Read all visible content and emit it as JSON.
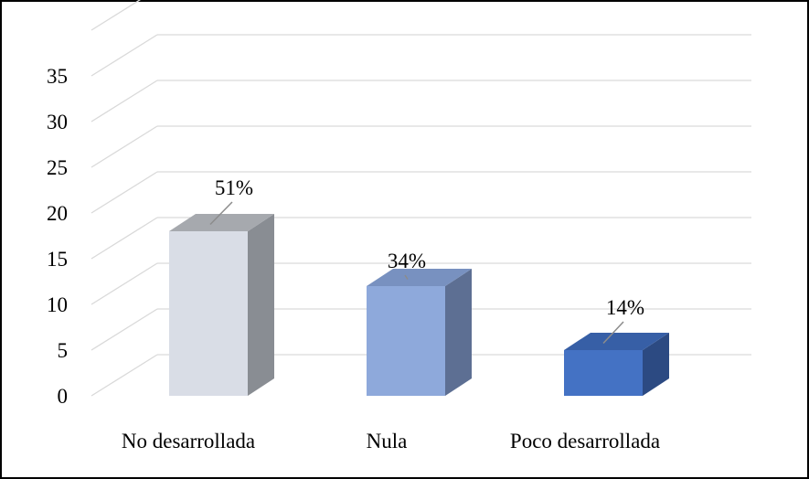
{
  "chart_data": {
    "type": "bar",
    "style": "3d-column",
    "categories": [
      "No desarrollada",
      "Nula",
      "Poco desarrollada"
    ],
    "values": [
      18,
      12,
      5
    ],
    "data_labels": [
      "51%",
      "34%",
      "14%"
    ],
    "ylim": [
      0,
      35
    ],
    "yticks": [
      "0",
      "5",
      "10",
      "15",
      "20",
      "25",
      "30",
      "35"
    ],
    "grid": true,
    "legend": "none",
    "colors": {
      "No desarrollada": {
        "front": "#d9dde6",
        "side": "#898d93",
        "top": "#a6a9ae"
      },
      "Nula": {
        "front": "#8ea9db",
        "side": "#5d6f93",
        "top": "#7891c0"
      },
      "Poco desarrollada": {
        "front": "#4472c4",
        "side": "#2c4a82",
        "top": "#375fa6"
      }
    },
    "gridline_color": "#d9d9d9"
  }
}
